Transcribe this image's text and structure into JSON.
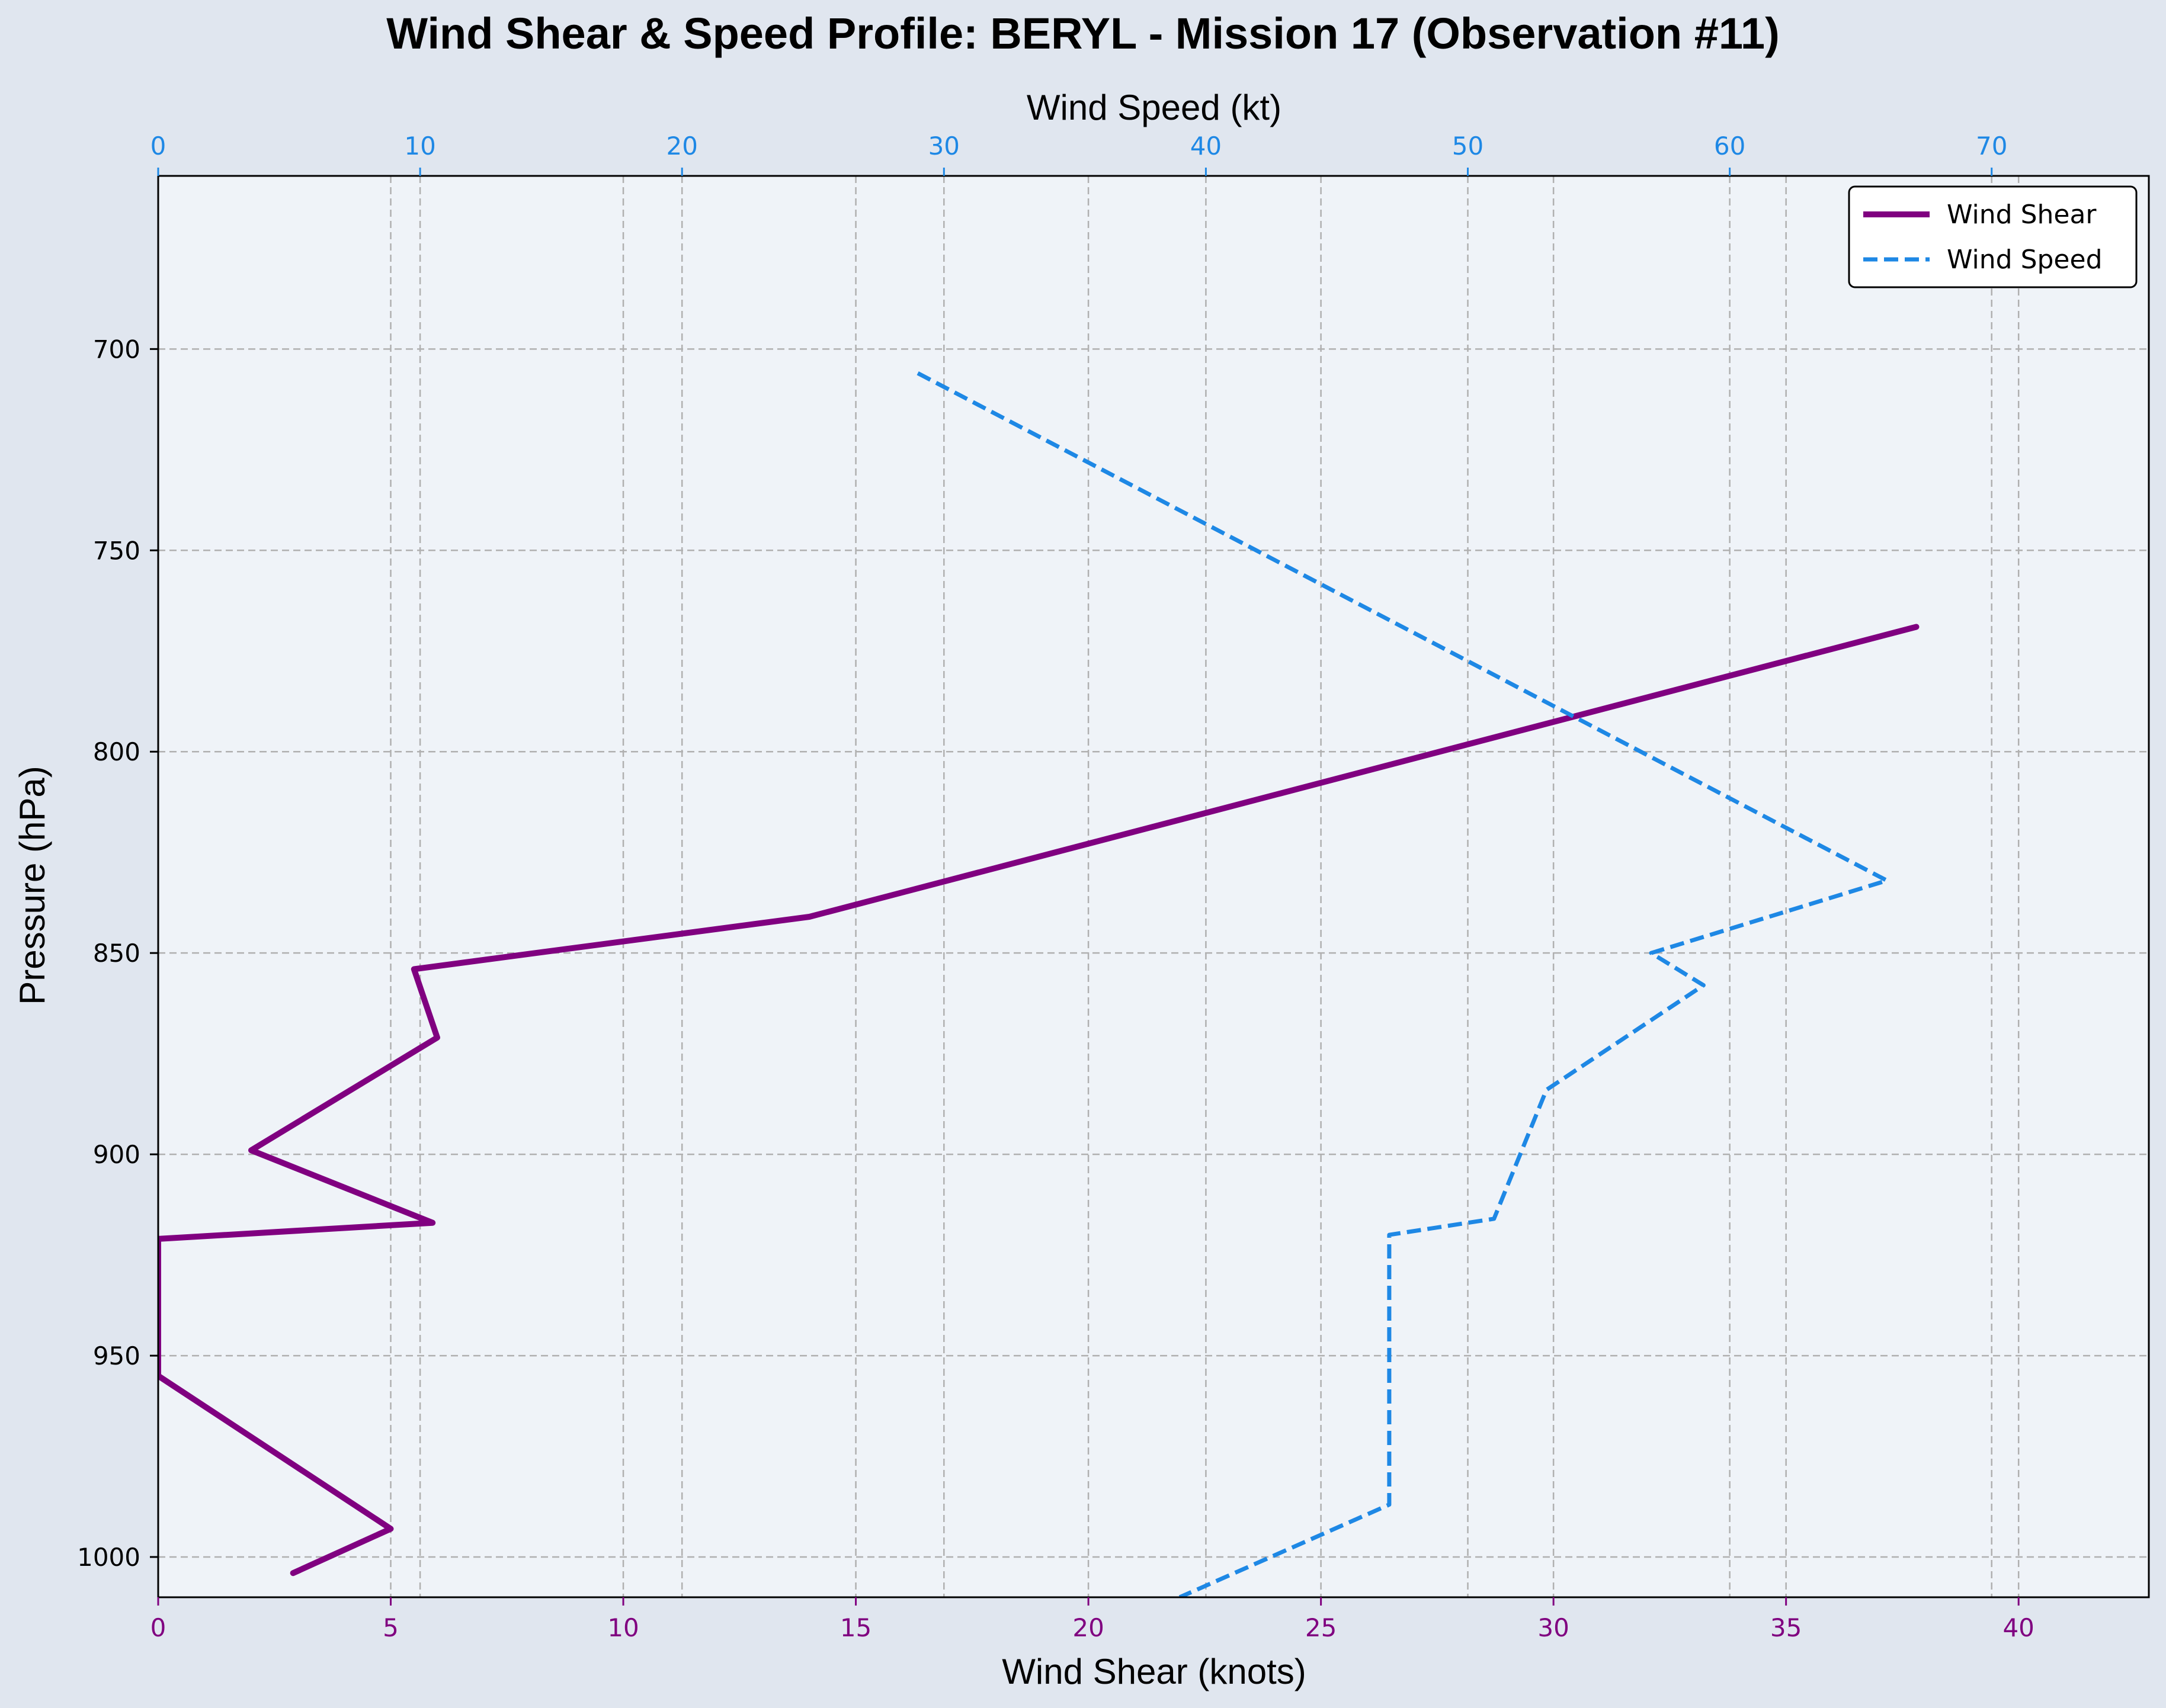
{
  "chart_data": {
    "type": "line",
    "title": "Wind Shear & Speed Profile: BERYL - Mission 17 (Observation #11)",
    "y_axis": {
      "label": "Pressure (hPa)",
      "range": [
        1010,
        657
      ],
      "inverted": true,
      "ticks": [
        700,
        750,
        800,
        850,
        900,
        950,
        1000
      ]
    },
    "x_axis_bottom": {
      "label": "Wind Shear (knots)",
      "range": [
        0,
        42.8
      ],
      "ticks": [
        0,
        5,
        10,
        15,
        20,
        25,
        30,
        35,
        40
      ],
      "color": "#800080"
    },
    "x_axis_top": {
      "label": "Wind Speed (kt)",
      "range": [
        0,
        76
      ],
      "ticks": [
        0,
        10,
        20,
        30,
        40,
        50,
        60,
        70
      ],
      "color": "#1e88e5"
    },
    "grid": true,
    "legend_position": "top-right",
    "series": [
      {
        "name": "Wind Shear",
        "axis": "bottom",
        "color": "#800080",
        "style": "solid",
        "points": [
          {
            "pressure": 769,
            "value": 37.8
          },
          {
            "pressure": 841,
            "value": 14.0
          },
          {
            "pressure": 854,
            "value": 5.5
          },
          {
            "pressure": 871,
            "value": 6.0
          },
          {
            "pressure": 899,
            "value": 2.0
          },
          {
            "pressure": 917,
            "value": 5.9
          },
          {
            "pressure": 921,
            "value": 0.0
          },
          {
            "pressure": 955,
            "value": 0.0
          },
          {
            "pressure": 993,
            "value": 5.0
          },
          {
            "pressure": 1004,
            "value": 2.9
          }
        ]
      },
      {
        "name": "Wind Speed",
        "axis": "top",
        "color": "#1e88e5",
        "style": "dashed",
        "points": [
          {
            "pressure": 706,
            "value": 29.0
          },
          {
            "pressure": 832,
            "value": 66.0
          },
          {
            "pressure": 850,
            "value": 57.0
          },
          {
            "pressure": 858,
            "value": 59.0
          },
          {
            "pressure": 884,
            "value": 53.0
          },
          {
            "pressure": 916,
            "value": 51.0
          },
          {
            "pressure": 920,
            "value": 47.0
          },
          {
            "pressure": 987,
            "value": 47.0
          },
          {
            "pressure": 1010,
            "value": 39.0
          }
        ]
      }
    ]
  }
}
